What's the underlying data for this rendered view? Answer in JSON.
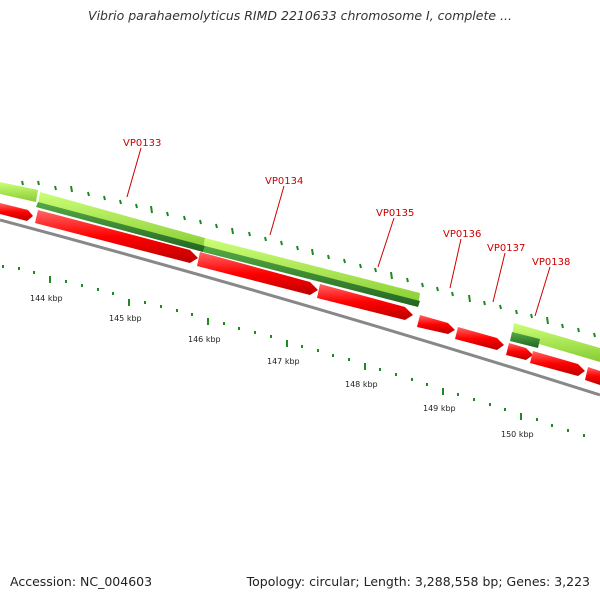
{
  "header": {
    "title": "Vibrio parahaemolyticus RIMD 2210633 chromosome I, complete ..."
  },
  "footer": {
    "accession": "Accession: NC_004603",
    "summary": "Topology: circular; Length: 3,288,558 bp; Genes: 3,223"
  },
  "genes": [
    {
      "name": "VP0133"
    },
    {
      "name": "VP0134"
    },
    {
      "name": "VP0135"
    },
    {
      "name": "VP0136"
    },
    {
      "name": "VP0137"
    },
    {
      "name": "VP0138"
    }
  ],
  "ruler": [
    {
      "label": "144 kbp"
    },
    {
      "label": "145 kbp"
    },
    {
      "label": "146 kbp"
    },
    {
      "label": "147 kbp"
    },
    {
      "label": "148 kbp"
    },
    {
      "label": "149 kbp"
    },
    {
      "label": "150 kbp"
    }
  ],
  "colors": {
    "cds": "#ff0000",
    "gene_light": "#aaee44",
    "gene_dark": "#3a8a2a",
    "tick": "#228822",
    "backbone": "#888888"
  }
}
